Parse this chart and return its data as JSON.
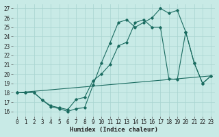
{
  "xlabel": "Humidex (Indice chaleur)",
  "bg_color": "#c8eae6",
  "grid_color": "#a8d4d0",
  "line_color": "#1a6b60",
  "xlim": [
    -0.5,
    23.5
  ],
  "ylim": [
    15.5,
    27.5
  ],
  "yticks": [
    16,
    17,
    18,
    19,
    20,
    21,
    22,
    23,
    24,
    25,
    26,
    27
  ],
  "xticks": [
    0,
    1,
    2,
    3,
    4,
    5,
    6,
    7,
    8,
    9,
    10,
    11,
    12,
    13,
    14,
    15,
    16,
    17,
    18,
    19,
    20,
    21,
    22,
    23
  ],
  "series": [
    {
      "x": [
        0,
        1,
        2,
        3,
        4,
        5,
        6,
        7,
        8,
        9,
        10,
        11,
        12,
        13,
        14,
        15,
        16,
        17,
        18,
        19,
        20,
        21,
        22,
        23
      ],
      "y": [
        18.0,
        18.0,
        18.0,
        17.2,
        16.5,
        16.3,
        16.0,
        16.3,
        16.4,
        18.8,
        21.2,
        23.3,
        25.5,
        25.8,
        25.0,
        25.5,
        26.0,
        27.0,
        26.5,
        26.8,
        24.5,
        21.2,
        19.0,
        19.8
      ]
    },
    {
      "x": [
        0,
        1,
        2,
        3,
        4,
        5,
        6,
        7,
        8,
        9,
        10,
        11,
        12,
        13,
        14,
        15,
        16,
        17,
        18,
        19,
        20,
        21,
        22,
        23
      ],
      "y": [
        18.0,
        18.0,
        18.0,
        17.2,
        16.6,
        16.4,
        16.2,
        17.3,
        17.5,
        19.3,
        20.0,
        21.0,
        23.0,
        23.4,
        25.5,
        25.8,
        25.0,
        25.0,
        19.5,
        19.4,
        24.5,
        21.2,
        19.0,
        19.8
      ]
    },
    {
      "x": [
        0,
        23
      ],
      "y": [
        18.0,
        19.8
      ]
    }
  ]
}
